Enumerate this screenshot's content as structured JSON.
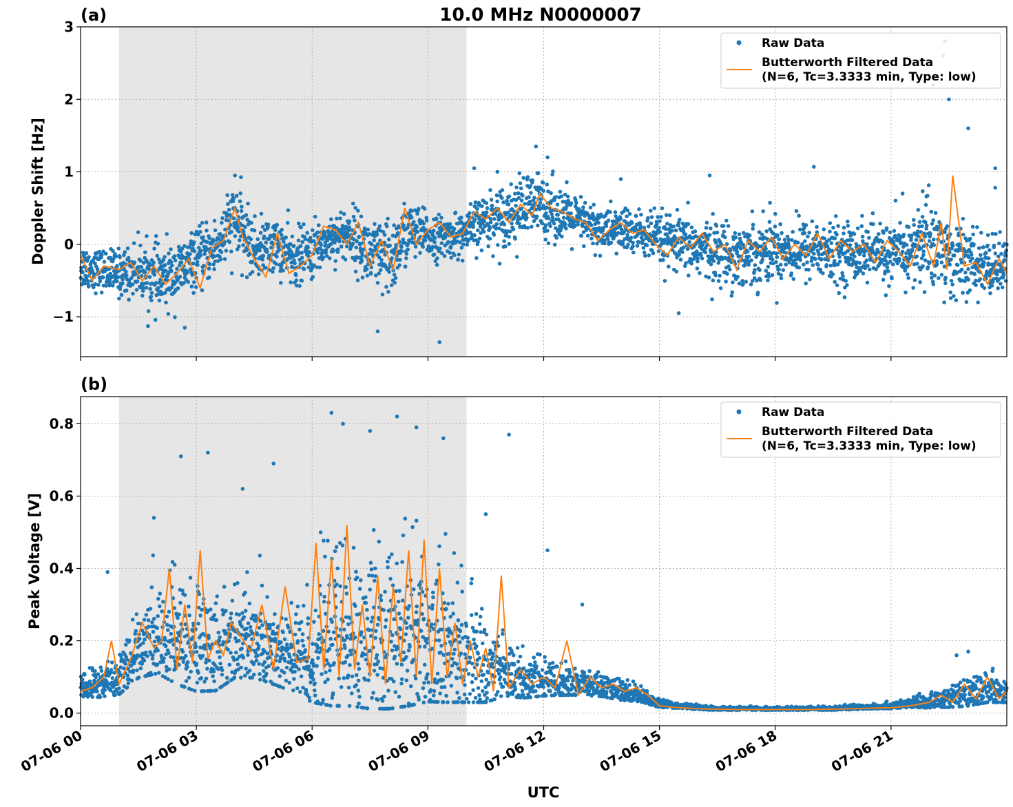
{
  "chart_data": [
    {
      "type": "scatter",
      "panel_label": "(a)",
      "title": "10.0 MHz N0000007",
      "xlabel": "",
      "ylabel": "Doppler Shift [Hz]",
      "xlim": [
        0,
        24
      ],
      "ylim": [
        -1.55,
        3.0
      ],
      "yticks": [
        -1,
        0,
        1,
        2,
        3
      ],
      "ytick_labels": [
        "−1",
        "0",
        "1",
        "2",
        "3"
      ],
      "xticks": [
        0,
        3,
        6,
        9,
        12,
        15,
        18,
        21
      ],
      "xtick_labels": [],
      "shaded_region": [
        1.0,
        10.0
      ],
      "grid": true,
      "legend_placement": "top-right",
      "legend": [
        "Raw Data",
        "Butterworth Filtered Data",
        "(N=6, Tc=3.3333 min, Type: low)"
      ],
      "series": [
        {
          "name": "Raw Data",
          "kind": "points",
          "x_hours": [
            0.0,
            0.5,
            1.0,
            1.5,
            2.0,
            2.5,
            3.0,
            3.5,
            4.0,
            4.5,
            5.0,
            5.5,
            6.0,
            6.5,
            7.0,
            7.5,
            8.0,
            8.5,
            9.0,
            9.5,
            10.0,
            10.5,
            11.0,
            11.5,
            12.0,
            12.5,
            13.0,
            13.5,
            14.0,
            14.5,
            15.0,
            15.5,
            16.0,
            16.5,
            17.0,
            17.5,
            18.0,
            18.5,
            19.0,
            19.5,
            20.0,
            20.5,
            21.0,
            21.5,
            22.0,
            22.5,
            23.0,
            23.5
          ],
          "y_center": [
            -0.3,
            -0.35,
            -0.4,
            -0.35,
            -0.5,
            -0.4,
            -0.2,
            -0.05,
            0.35,
            -0.1,
            0.0,
            -0.2,
            -0.1,
            0.1,
            0.15,
            -0.15,
            -0.25,
            0.2,
            0.1,
            0.1,
            0.15,
            0.35,
            0.4,
            0.5,
            0.55,
            0.4,
            0.3,
            0.2,
            0.2,
            0.15,
            0.05,
            0.0,
            -0.05,
            -0.1,
            -0.15,
            -0.1,
            -0.05,
            -0.1,
            -0.05,
            -0.15,
            -0.1,
            -0.1,
            -0.15,
            -0.1,
            0.1,
            -0.2,
            -0.25,
            -0.3
          ],
          "y_spread": [
            0.35,
            0.3,
            0.35,
            0.4,
            0.5,
            0.45,
            0.4,
            0.45,
            0.55,
            0.45,
            0.4,
            0.45,
            0.4,
            0.35,
            0.4,
            0.55,
            0.6,
            0.45,
            0.35,
            0.3,
            0.35,
            0.4,
            0.45,
            0.5,
            0.5,
            0.4,
            0.35,
            0.35,
            0.35,
            0.35,
            0.4,
            0.4,
            0.45,
            0.45,
            0.5,
            0.5,
            0.5,
            0.45,
            0.45,
            0.45,
            0.45,
            0.45,
            0.45,
            0.5,
            0.8,
            0.6,
            0.5,
            0.45
          ],
          "outliers_xy": [
            [
              4.0,
              0.95
            ],
            [
              9.3,
              -1.35
            ],
            [
              7.7,
              -1.2
            ],
            [
              11.8,
              1.35
            ],
            [
              15.5,
              -0.95
            ],
            [
              22.4,
              2.8
            ],
            [
              22.35,
              2.6
            ],
            [
              22.1,
              2.2
            ],
            [
              22.5,
              2.0
            ],
            [
              23.0,
              1.6
            ],
            [
              23.7,
              1.05
            ],
            [
              23.7,
              0.78
            ],
            [
              12.1,
              1.2
            ],
            [
              10.2,
              1.05
            ],
            [
              10.8,
              1.0
            ],
            [
              2.7,
              -1.15
            ],
            [
              19.0,
              1.07
            ],
            [
              14.0,
              0.9
            ],
            [
              16.3,
              0.95
            ],
            [
              21.3,
              0.7
            ]
          ]
        },
        {
          "name": "Butterworth Filtered Data",
          "kind": "line",
          "x_hours": [
            0.0,
            0.3,
            0.6,
            1.0,
            1.3,
            1.6,
            1.9,
            2.2,
            2.5,
            2.8,
            3.1,
            3.4,
            3.7,
            4.0,
            4.2,
            4.5,
            4.8,
            5.1,
            5.4,
            5.7,
            6.0,
            6.3,
            6.6,
            6.9,
            7.2,
            7.5,
            7.8,
            8.1,
            8.4,
            8.7,
            9.0,
            9.3,
            9.6,
            9.9,
            10.2,
            10.5,
            10.8,
            11.1,
            11.4,
            11.7,
            11.9,
            12.2,
            12.5,
            12.8,
            13.1,
            13.4,
            13.7,
            14.0,
            14.3,
            14.6,
            14.9,
            15.2,
            15.5,
            15.8,
            16.1,
            16.4,
            16.7,
            17.0,
            17.3,
            17.6,
            17.9,
            18.2,
            18.5,
            18.8,
            19.1,
            19.4,
            19.7,
            20.0,
            20.3,
            20.6,
            20.9,
            21.2,
            21.5,
            21.8,
            22.1,
            22.3,
            22.45,
            22.6,
            22.9,
            23.2,
            23.5,
            23.8,
            24.0
          ],
          "y": [
            -0.15,
            -0.5,
            -0.3,
            -0.35,
            -0.25,
            -0.5,
            -0.3,
            -0.55,
            -0.4,
            -0.2,
            -0.6,
            -0.05,
            0.05,
            0.5,
            0.1,
            -0.2,
            -0.45,
            0.15,
            -0.4,
            -0.3,
            -0.15,
            0.25,
            0.2,
            0.0,
            0.3,
            -0.3,
            0.05,
            -0.35,
            0.5,
            0.0,
            0.2,
            0.3,
            0.1,
            0.15,
            0.45,
            0.35,
            0.5,
            0.3,
            0.55,
            0.4,
            0.7,
            0.5,
            0.45,
            0.35,
            0.3,
            0.05,
            0.2,
            0.3,
            0.15,
            0.2,
            0.0,
            -0.15,
            0.1,
            -0.05,
            0.15,
            -0.1,
            0.0,
            -0.35,
            0.05,
            -0.1,
            0.1,
            -0.2,
            0.0,
            -0.15,
            0.15,
            -0.2,
            0.05,
            -0.1,
            0.0,
            -0.25,
            0.05,
            -0.1,
            -0.3,
            0.15,
            -0.3,
            0.3,
            -0.35,
            0.95,
            -0.3,
            -0.25,
            -0.55,
            -0.2,
            -0.4
          ]
        }
      ]
    },
    {
      "type": "scatter",
      "panel_label": "(b)",
      "title": "",
      "xlabel": "UTC",
      "ylabel": "Peak Voltage [V]",
      "xlim": [
        0,
        24
      ],
      "ylim": [
        -0.035,
        0.875
      ],
      "yticks": [
        0.0,
        0.2,
        0.4,
        0.6,
        0.8
      ],
      "ytick_labels": [
        "0.0",
        "0.2",
        "0.4",
        "0.6",
        "0.8"
      ],
      "xticks": [
        0,
        3,
        6,
        9,
        12,
        15,
        18,
        21
      ],
      "xtick_labels": [
        "07-06 00",
        "07-06 03",
        "07-06 06",
        "07-06 09",
        "07-06 12",
        "07-06 15",
        "07-06 18",
        "07-06 21"
      ],
      "shaded_region": [
        1.0,
        10.0
      ],
      "grid": true,
      "legend_placement": "top-right",
      "legend": [
        "Raw Data",
        "Butterworth Filtered Data",
        "(N=6, Tc=3.3333 min, Type: low)"
      ],
      "series": [
        {
          "name": "Raw Data",
          "kind": "points",
          "x_hours": [
            0.0,
            0.5,
            1.0,
            1.5,
            2.0,
            2.5,
            3.0,
            3.5,
            4.0,
            4.5,
            5.0,
            5.5,
            6.0,
            6.5,
            7.0,
            7.5,
            8.0,
            8.5,
            9.0,
            9.5,
            10.0,
            10.5,
            11.0,
            11.5,
            12.0,
            12.5,
            13.0,
            13.5,
            14.0,
            14.5,
            15.0,
            15.5,
            16.0,
            16.5,
            17.0,
            17.5,
            18.0,
            18.5,
            19.0,
            19.5,
            20.0,
            20.5,
            21.0,
            21.5,
            22.0,
            22.5,
            23.0,
            23.5
          ],
          "y_center": [
            0.07,
            0.08,
            0.1,
            0.17,
            0.2,
            0.2,
            0.18,
            0.17,
            0.2,
            0.2,
            0.17,
            0.15,
            0.15,
            0.2,
            0.2,
            0.18,
            0.18,
            0.2,
            0.2,
            0.18,
            0.15,
            0.12,
            0.12,
            0.09,
            0.09,
            0.08,
            0.08,
            0.07,
            0.06,
            0.05,
            0.025,
            0.02,
            0.015,
            0.012,
            0.012,
            0.012,
            0.012,
            0.012,
            0.012,
            0.013,
            0.015,
            0.018,
            0.02,
            0.025,
            0.03,
            0.04,
            0.05,
            0.06
          ],
          "y_spread": [
            0.04,
            0.06,
            0.08,
            0.12,
            0.15,
            0.2,
            0.2,
            0.18,
            0.17,
            0.17,
            0.15,
            0.15,
            0.2,
            0.3,
            0.3,
            0.28,
            0.28,
            0.3,
            0.28,
            0.25,
            0.2,
            0.15,
            0.12,
            0.08,
            0.07,
            0.05,
            0.05,
            0.04,
            0.04,
            0.03,
            0.015,
            0.01,
            0.008,
            0.006,
            0.006,
            0.006,
            0.006,
            0.006,
            0.006,
            0.007,
            0.008,
            0.01,
            0.012,
            0.015,
            0.025,
            0.04,
            0.05,
            0.05
          ],
          "outliers_xy": [
            [
              6.5,
              0.83
            ],
            [
              8.2,
              0.82
            ],
            [
              9.4,
              0.76
            ],
            [
              11.1,
              0.77
            ],
            [
              2.6,
              0.71
            ],
            [
              3.3,
              0.72
            ],
            [
              4.2,
              0.62
            ],
            [
              5.0,
              0.69
            ],
            [
              6.8,
              0.8
            ],
            [
              7.5,
              0.78
            ],
            [
              8.7,
              0.79
            ],
            [
              0.7,
              0.39
            ],
            [
              12.1,
              0.45
            ],
            [
              13.0,
              0.3
            ],
            [
              23.0,
              0.17
            ],
            [
              22.7,
              0.16
            ],
            [
              10.5,
              0.55
            ],
            [
              1.9,
              0.54
            ]
          ]
        },
        {
          "name": "Butterworth Filtered Data",
          "kind": "line",
          "x_hours": [
            0.0,
            0.3,
            0.6,
            0.8,
            1.0,
            1.3,
            1.6,
            1.9,
            2.1,
            2.3,
            2.5,
            2.7,
            2.9,
            3.1,
            3.3,
            3.5,
            3.7,
            3.9,
            4.1,
            4.4,
            4.7,
            5.0,
            5.3,
            5.6,
            5.9,
            6.1,
            6.3,
            6.5,
            6.7,
            6.9,
            7.1,
            7.3,
            7.5,
            7.7,
            7.9,
            8.1,
            8.3,
            8.5,
            8.7,
            8.9,
            9.1,
            9.3,
            9.5,
            9.7,
            9.9,
            10.1,
            10.3,
            10.5,
            10.7,
            10.9,
            11.1,
            11.4,
            11.7,
            12.0,
            12.3,
            12.6,
            12.9,
            13.2,
            13.5,
            13.8,
            14.1,
            14.4,
            14.7,
            15.0,
            15.5,
            16.0,
            17.0,
            18.0,
            19.0,
            20.0,
            21.0,
            21.5,
            22.0,
            22.3,
            22.6,
            22.9,
            23.2,
            23.5,
            23.8,
            24.0
          ],
          "y": [
            0.06,
            0.07,
            0.1,
            0.2,
            0.08,
            0.15,
            0.25,
            0.18,
            0.2,
            0.4,
            0.12,
            0.3,
            0.14,
            0.45,
            0.15,
            0.2,
            0.16,
            0.25,
            0.22,
            0.17,
            0.3,
            0.12,
            0.35,
            0.14,
            0.15,
            0.47,
            0.12,
            0.43,
            0.1,
            0.52,
            0.12,
            0.3,
            0.1,
            0.38,
            0.08,
            0.35,
            0.14,
            0.45,
            0.1,
            0.48,
            0.08,
            0.4,
            0.1,
            0.25,
            0.08,
            0.2,
            0.1,
            0.18,
            0.06,
            0.38,
            0.07,
            0.12,
            0.08,
            0.1,
            0.07,
            0.2,
            0.05,
            0.1,
            0.07,
            0.08,
            0.06,
            0.07,
            0.05,
            0.02,
            0.015,
            0.012,
            0.01,
            0.01,
            0.01,
            0.012,
            0.015,
            0.02,
            0.03,
            0.05,
            0.03,
            0.08,
            0.04,
            0.1,
            0.04,
            0.06
          ]
        }
      ]
    }
  ],
  "colors": {
    "raw": "#1f77b4",
    "filtered": "#ff7f0e",
    "shade": "#e6e6e6",
    "grid": "#b0b0b0"
  }
}
